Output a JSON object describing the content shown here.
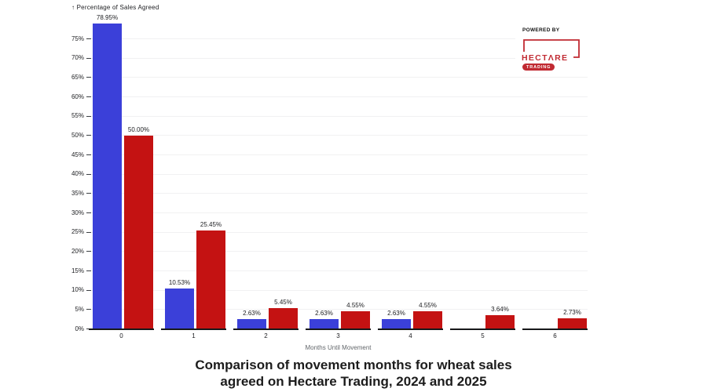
{
  "logo": {
    "powered_by": "POWERED BY",
    "wordmark": "HECTΛRE",
    "badge": "TRADING",
    "color": "#c12a32"
  },
  "axes": {
    "up_arrow": "↑"
  },
  "chart_data": {
    "type": "bar",
    "title": "Comparison of movement months for wheat sales agreed on Hectare Trading, 2024 and 2025",
    "title_lines": [
      "Comparison of movement months for wheat sales",
      "agreed on Hectare Trading, 2024 and 2025"
    ],
    "ylabel": "Percentage of Sales Agreed",
    "xlabel": "Months Until Movement",
    "categories": [
      "0",
      "1",
      "2",
      "3",
      "4",
      "5",
      "6"
    ],
    "series": [
      {
        "name": "2024",
        "color": "#3b40d9",
        "values": [
          78.95,
          10.53,
          2.63,
          2.63,
          2.63,
          0,
          0
        ],
        "labels": [
          "78.95%",
          "10.53%",
          "2.63%",
          "2.63%",
          "2.63%",
          "",
          ""
        ]
      },
      {
        "name": "2025",
        "color": "#c41212",
        "values": [
          50.0,
          25.45,
          5.45,
          4.55,
          4.55,
          3.64,
          2.73
        ],
        "labels": [
          "50.00%",
          "25.45%",
          "5.45%",
          "4.55%",
          "4.55%",
          "3.64%",
          "2.73%"
        ]
      }
    ],
    "y_ticks": [
      {
        "value": 0,
        "label": "0%"
      },
      {
        "value": 5,
        "label": "5%"
      },
      {
        "value": 10,
        "label": "10%"
      },
      {
        "value": 15,
        "label": "15%"
      },
      {
        "value": 20,
        "label": "20%"
      },
      {
        "value": 25,
        "label": "25%"
      },
      {
        "value": 30,
        "label": "30%"
      },
      {
        "value": 35,
        "label": "35%"
      },
      {
        "value": 40,
        "label": "40%"
      },
      {
        "value": 45,
        "label": "45%"
      },
      {
        "value": 50,
        "label": "50%"
      },
      {
        "value": 55,
        "label": "55%"
      },
      {
        "value": 60,
        "label": "60%"
      },
      {
        "value": 65,
        "label": "65%"
      },
      {
        "value": 70,
        "label": "70%"
      },
      {
        "value": 75,
        "label": "75%"
      }
    ],
    "ylim": [
      0,
      80
    ],
    "grid": true,
    "legend": "none"
  }
}
